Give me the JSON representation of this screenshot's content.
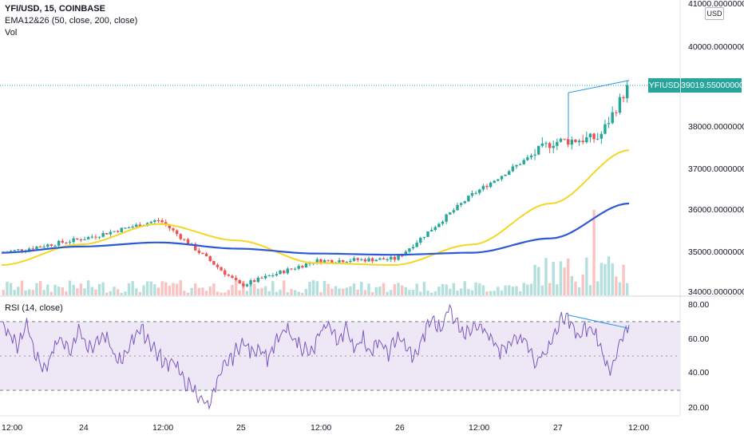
{
  "header": {
    "symbol_line": "YFI/USD, 15, COINBASE",
    "indicator1": "EMA12&26 (50, close, 200, close)",
    "indicator2": "Vol",
    "rsi_label": "RSI (14, close)"
  },
  "price_axis": {
    "currency": "USD",
    "ticks": [
      "41000.00000000",
      "40000.00000000",
      "38000.00000000",
      "37000.00000000",
      "36000.00000000",
      "35000.00000000",
      "34000.00000000"
    ],
    "last_price_symbol": "YFIUSD",
    "last_price": "39019.55000000"
  },
  "rsi_axis": {
    "ticks": [
      "80.00",
      "60.00",
      "40.00",
      "20.00"
    ],
    "bands": [
      30,
      50,
      70
    ]
  },
  "time_axis": {
    "ticks": [
      "12:00",
      "24",
      "12:00",
      "25",
      "12:00",
      "26",
      "12:00",
      "27",
      "12:00"
    ]
  },
  "colors": {
    "up": "#26a69a",
    "down": "#ef5350",
    "ema50": "#f5d624",
    "ema200": "#2c59d6",
    "rsi": "#7e57c2",
    "rsi_band": "#ede7f6",
    "trendline": "#2196f3"
  },
  "chart_data": [
    {
      "type": "candlestick",
      "title": "YFI/USD, 15, COINBASE",
      "ylim": [
        34000,
        41200
      ],
      "x_range": [
        "Nov 23 12:00",
        "Nov 27 12:00"
      ],
      "key_closes": [
        {
          "t": "Nov 23 12:00",
          "v": 35000
        },
        {
          "t": "Nov 24",
          "v": 35350
        },
        {
          "t": "Nov 24 12:00",
          "v": 35800
        },
        {
          "t": "Nov 25",
          "v": 34200
        },
        {
          "t": "Nov 25 12:00",
          "v": 34800
        },
        {
          "t": "Nov 26",
          "v": 34850
        },
        {
          "t": "Nov 26 12:00",
          "v": 36400
        },
        {
          "t": "Nov 27",
          "v": 37700
        },
        {
          "t": "Nov 27 09:00",
          "v": 37800
        },
        {
          "t": "Nov 27 10:30",
          "v": 39019.55
        }
      ],
      "series": [
        {
          "name": "EMA 50",
          "values": [
            34700,
            35200,
            35700,
            35300,
            34750,
            34700,
            35200,
            36200,
            37500
          ]
        },
        {
          "name": "EMA 200",
          "values": [
            35000,
            35150,
            35250,
            35100,
            34980,
            34950,
            35000,
            35350,
            36200
          ]
        }
      ],
      "last_price": 39019.55,
      "annotations": [
        "trendline 37900 to 39050 over last candles"
      ]
    },
    {
      "type": "line",
      "title": "RSI (14, close)",
      "ylim": [
        15,
        82
      ],
      "bands": [
        30,
        50,
        70
      ],
      "values": [
        68,
        62,
        55,
        70,
        48,
        40,
        55,
        60,
        52,
        66,
        55,
        58,
        62,
        50,
        45,
        58,
        66,
        60,
        52,
        44,
        48,
        36,
        30,
        25,
        20,
        32,
        44,
        50,
        58,
        52,
        55,
        48,
        58,
        65,
        60,
        55,
        50,
        62,
        70,
        58,
        66,
        55,
        60,
        52,
        58,
        50,
        62,
        55,
        48,
        60,
        72,
        65,
        78,
        70,
        62,
        70,
        66,
        58,
        52,
        55,
        62,
        60,
        45,
        50,
        58,
        70,
        72,
        60,
        66,
        64,
        50,
        40,
        58,
        66
      ]
    }
  ]
}
